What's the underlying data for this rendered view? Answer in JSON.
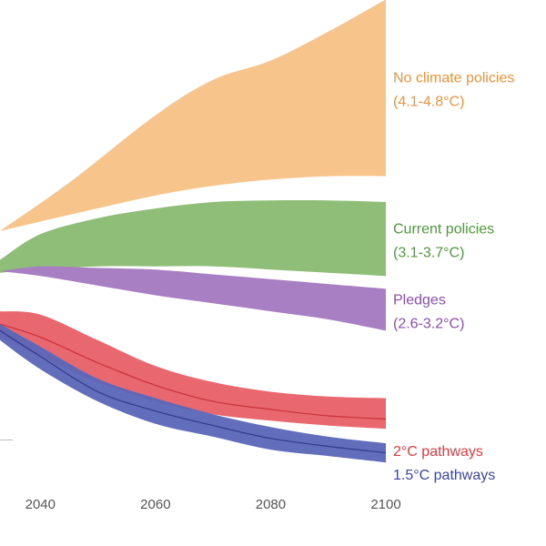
{
  "chart_data": {
    "type": "area",
    "title": "",
    "xlabel": "",
    "ylabel": "",
    "xlim": [
      2033,
      2100
    ],
    "ylim": [
      -10,
      140
    ],
    "x_ticks": [
      {
        "value": 2040,
        "label": "2040"
      },
      {
        "value": 2060,
        "label": "2060"
      },
      {
        "value": 2080,
        "label": "2080"
      },
      {
        "value": 2100,
        "label": "2100"
      }
    ],
    "grid": {
      "x": false,
      "y": false
    },
    "baseline_y": 6,
    "legend": "direct labels at right",
    "series": [
      {
        "key": "no_policy",
        "label_line1": "No climate policies",
        "label_line2": "(4.1-4.8°C)",
        "color": "#f7c48c",
        "label_color": "#f0923a",
        "opacity": 1.0,
        "x": [
          2033,
          2045,
          2060,
          2070,
          2080,
          2090,
          2100
        ],
        "upper": [
          71,
          86,
          107,
          118,
          124,
          133,
          143
        ],
        "lower": [
          71,
          76,
          82,
          85,
          87,
          88,
          88
        ]
      },
      {
        "key": "current",
        "label_line1": "Current policies",
        "label_line2": "(3.1-3.7°C)",
        "color": "#8fbe79",
        "label_color": "#4e9a3a",
        "opacity": 1.0,
        "x": [
          2033,
          2040,
          2050,
          2060,
          2070,
          2080,
          2090,
          2100
        ],
        "upper": [
          62,
          70,
          75,
          78,
          80,
          80.5,
          80.5,
          80
        ],
        "lower": [
          58,
          59,
          60,
          60,
          60,
          59,
          58,
          57
        ]
      },
      {
        "key": "pledges",
        "label_line1": "Pledges",
        "label_line2": "(2.6-3.2°C)",
        "color": "#a97fc4",
        "label_color": "#8a4fb0",
        "opacity": 1.0,
        "x": [
          2033,
          2040,
          2050,
          2060,
          2070,
          2080,
          2090,
          2100
        ],
        "upper": [
          58.5,
          60,
          59.5,
          59,
          57.5,
          56,
          54.5,
          53
        ],
        "lower": [
          58.5,
          57,
          54,
          51,
          48.5,
          46,
          43.5,
          40
        ]
      },
      {
        "key": "two_c",
        "label_line1": "2°C pathways",
        "label_line2": "",
        "color": "#e75a63",
        "label_color": "#e03a42",
        "opacity": 0.92,
        "x": [
          2033,
          2040,
          2050,
          2060,
          2070,
          2080,
          2090,
          2100
        ],
        "upper": [
          46,
          45,
          37,
          29,
          24,
          21,
          19.5,
          19
        ],
        "lower": [
          38,
          32,
          24,
          18,
          14,
          12,
          10.5,
          9.5
        ],
        "central": [
          42,
          38,
          30,
          23,
          18,
          15.5,
          13.5,
          12.5
        ],
        "central_color": "#c8323a"
      },
      {
        "key": "one_five_c",
        "label_line1": "1.5°C pathways",
        "label_line2": "",
        "color": "#5a66b8",
        "label_color": "#3c46a0",
        "opacity": 0.95,
        "x": [
          2033,
          2040,
          2050,
          2060,
          2070,
          2080,
          2090,
          2100
        ],
        "upper": [
          42,
          35,
          25,
          19,
          14,
          10,
          7,
          5
        ],
        "lower": [
          37,
          28,
          18,
          11,
          7,
          3,
          1,
          -1
        ],
        "central": [
          40,
          32,
          21,
          15,
          10.5,
          6.5,
          4,
          2
        ],
        "central_color": "#303a88"
      }
    ]
  }
}
